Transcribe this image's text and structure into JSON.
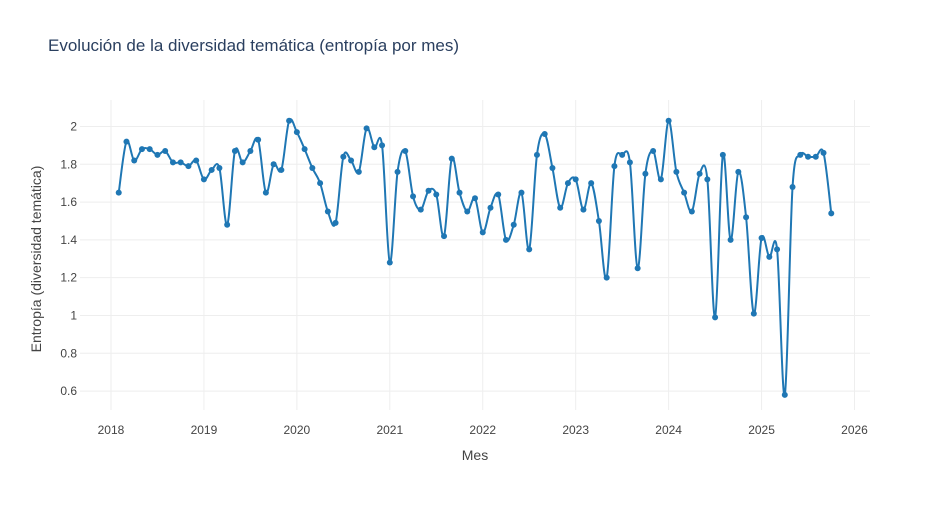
{
  "chart_data": {
    "type": "line",
    "title": "Evolución de la diversidad temática (entropía por mes)",
    "xlabel": "Mes",
    "ylabel": "Entropía (diversidad temática)",
    "x_ticks": [
      {
        "label": "2018",
        "year": 2018
      },
      {
        "label": "2019",
        "year": 2019
      },
      {
        "label": "2020",
        "year": 2020
      },
      {
        "label": "2021",
        "year": 2021
      },
      {
        "label": "2022",
        "year": 2022
      },
      {
        "label": "2023",
        "year": 2023
      },
      {
        "label": "2024",
        "year": 2024
      },
      {
        "label": "2025",
        "year": 2025
      },
      {
        "label": "2026",
        "year": 2026
      }
    ],
    "y_ticks": [
      {
        "label": "0.6",
        "value": 0.6
      },
      {
        "label": "0.8",
        "value": 0.8
      },
      {
        "label": "1",
        "value": 1.0
      },
      {
        "label": "1.2",
        "value": 1.2
      },
      {
        "label": "1.4",
        "value": 1.4
      },
      {
        "label": "1.6",
        "value": 1.6
      },
      {
        "label": "1.8",
        "value": 1.8
      },
      {
        "label": "2",
        "value": 2.0
      }
    ],
    "xlim": [
      "2017-09-01",
      "2026-03-01"
    ],
    "ylim": [
      0.5,
      2.14
    ],
    "grid": true,
    "colors": {
      "line": "#1f77b4",
      "grid": "#eeeeee",
      "text": "#444444",
      "title": "#2a3f5f"
    },
    "series": [
      {
        "x": [
          "2018-02",
          "2018-03",
          "2018-04",
          "2018-05",
          "2018-06",
          "2018-07",
          "2018-08",
          "2018-09",
          "2018-10",
          "2018-11",
          "2018-12",
          "2019-01",
          "2019-02",
          "2019-03",
          "2019-04",
          "2019-05",
          "2019-06",
          "2019-07",
          "2019-08",
          "2019-09",
          "2019-10",
          "2019-11",
          "2019-12",
          "2020-01",
          "2020-02",
          "2020-03",
          "2020-04",
          "2020-05",
          "2020-06",
          "2020-07",
          "2020-08",
          "2020-09",
          "2020-10",
          "2020-11",
          "2020-12",
          "2021-01",
          "2021-02",
          "2021-03",
          "2021-04",
          "2021-05",
          "2021-06",
          "2021-07",
          "2021-08",
          "2021-09",
          "2021-10",
          "2021-11",
          "2021-12",
          "2022-01",
          "2022-02",
          "2022-03",
          "2022-04",
          "2022-05",
          "2022-06",
          "2022-07",
          "2022-08",
          "2022-09",
          "2022-10",
          "2022-11",
          "2022-12",
          "2023-01",
          "2023-02",
          "2023-03",
          "2023-04",
          "2023-05",
          "2023-06",
          "2023-07",
          "2023-08",
          "2023-09",
          "2023-10",
          "2023-11",
          "2023-12",
          "2024-01",
          "2024-02",
          "2024-03",
          "2024-04",
          "2024-05",
          "2024-06",
          "2024-07",
          "2024-08",
          "2024-09",
          "2024-10",
          "2024-11",
          "2024-12",
          "2025-01",
          "2025-02",
          "2025-03",
          "2025-04",
          "2025-05",
          "2025-06",
          "2025-07",
          "2025-08",
          "2025-09",
          "2025-10"
        ],
        "values": [
          1.65,
          1.92,
          1.82,
          1.88,
          1.88,
          1.85,
          1.87,
          1.81,
          1.81,
          1.79,
          1.82,
          1.72,
          1.77,
          1.78,
          1.48,
          1.87,
          1.81,
          1.87,
          1.93,
          1.65,
          1.8,
          1.77,
          2.03,
          1.97,
          1.88,
          1.78,
          1.7,
          1.55,
          1.49,
          1.84,
          1.82,
          1.76,
          1.99,
          1.89,
          1.9,
          1.28,
          1.76,
          1.87,
          1.63,
          1.56,
          1.66,
          1.64,
          1.42,
          1.83,
          1.65,
          1.55,
          1.62,
          1.44,
          1.57,
          1.64,
          1.4,
          1.48,
          1.65,
          1.35,
          1.85,
          1.96,
          1.78,
          1.57,
          1.7,
          1.72,
          1.56,
          1.7,
          1.5,
          1.2,
          1.79,
          1.85,
          1.81,
          1.25,
          1.75,
          1.87,
          1.72,
          2.03,
          1.76,
          1.65,
          1.55,
          1.75,
          1.72,
          0.99,
          1.85,
          1.4,
          1.76,
          1.52,
          1.01,
          1.41,
          1.31,
          1.35,
          0.58,
          1.68,
          1.85,
          1.84,
          1.84,
          1.86,
          1.54
        ]
      }
    ]
  }
}
